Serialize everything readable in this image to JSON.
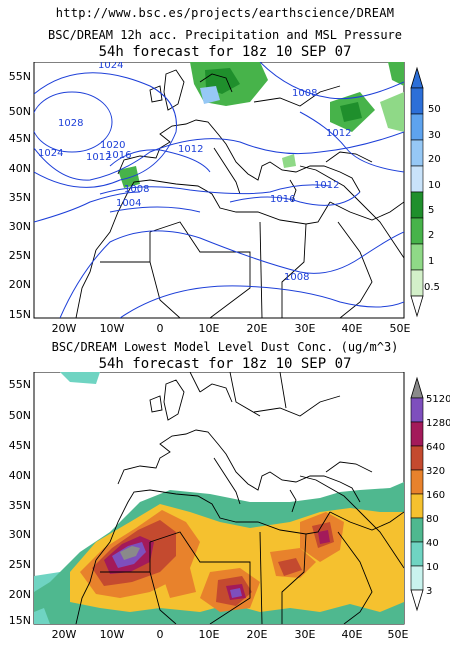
{
  "header": {
    "url": "http://www.bsc.es/projects/earthscience/DREAM"
  },
  "panels": [
    {
      "title": "BSC/DREAM 12h acc. Precipitation and MSL Pressure",
      "subtitle": "54h forecast for 18z 10 SEP 07",
      "lat_labels": [
        "55N",
        "50N",
        "45N",
        "40N",
        "35N",
        "30N",
        "25N",
        "20N",
        "15N"
      ],
      "lon_labels": [
        "20W",
        "10W",
        "0",
        "10E",
        "20E",
        "30E",
        "40E",
        "50E"
      ],
      "colorbar": {
        "labels": [
          "50",
          "30",
          "20",
          "10",
          "5",
          "2",
          "1",
          "0.5"
        ],
        "colors": [
          "#2c6fd8",
          "#5ea3ee",
          "#96c8f5",
          "#c9e3fa",
          "#1f8f2c",
          "#47b34a",
          "#8fd987",
          "#d3f0c9"
        ]
      },
      "isobars": [
        {
          "label": "1024",
          "color": "#1d3fd8"
        },
        {
          "label": "1028",
          "color": "#1d3fd8"
        },
        {
          "label": "1024",
          "color": "#1d3fd8"
        },
        {
          "label": "1008",
          "color": "#1d3fd8"
        },
        {
          "label": "1012",
          "color": "#1d3fd8"
        },
        {
          "label": "1020",
          "color": "#1d3fd8"
        },
        {
          "label": "1016",
          "color": "#1d3fd8"
        },
        {
          "label": "1012",
          "color": "#1d3fd8"
        },
        {
          "label": "1012",
          "color": "#1d3fd8"
        },
        {
          "label": "1008",
          "color": "#1d3fd8"
        },
        {
          "label": "1004",
          "color": "#1d3fd8"
        },
        {
          "label": "1016",
          "color": "#1d3fd8"
        },
        {
          "label": "1012",
          "color": "#1d3fd8"
        },
        {
          "label": "1008",
          "color": "#1d3fd8"
        }
      ]
    },
    {
      "title": "BSC/DREAM Lowest Model Level Dust Conc. (ug/m^3)",
      "subtitle": "54h forecast for 18z 10 SEP 07",
      "lat_labels": [
        "55N",
        "50N",
        "45N",
        "40N",
        "35N",
        "30N",
        "25N",
        "20N",
        "15N"
      ],
      "lon_labels": [
        "20W",
        "10W",
        "0",
        "10E",
        "20E",
        "30E",
        "40E",
        "50E"
      ],
      "colorbar": {
        "labels": [
          "5120",
          "1280",
          "640",
          "320",
          "160",
          "80",
          "40",
          "10",
          "3"
        ],
        "colors": [
          "#8a8a8a",
          "#7e4fbd",
          "#a31a5a",
          "#c44a2f",
          "#e8822c",
          "#f5c12f",
          "#4fb88f",
          "#6fd4c2",
          "#c9f3ee"
        ]
      }
    }
  ]
}
